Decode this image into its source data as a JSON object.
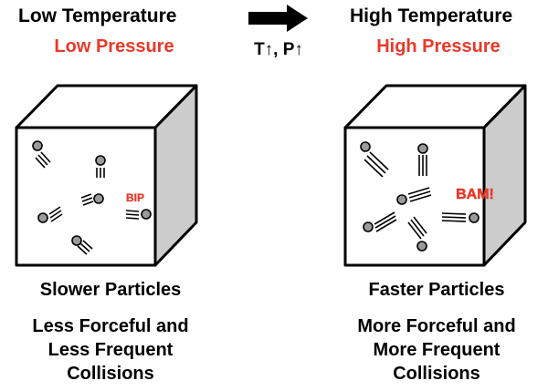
{
  "left": {
    "title": "Low Temperature",
    "subtitle": "Low Pressure",
    "caption": "Slower Particles",
    "description_line1": "Less Forceful and",
    "description_line2": "Less Frequent",
    "description_line3": "Collisions",
    "impact_word": "BIP"
  },
  "right": {
    "title": "High Temperature",
    "subtitle": "High Pressure",
    "caption": "Faster Particles",
    "description_line1": "More Forceful and",
    "description_line2": "More Frequent",
    "description_line3": "Collisions",
    "impact_word": "BAM!"
  },
  "transition": {
    "label": "T↑, P↑",
    "icon": "right-arrow-icon"
  },
  "colors": {
    "accent": "#e8392a",
    "particle_fill": "#9a9a9a",
    "box_side": "#cccccc",
    "box_front": "#ffffff"
  }
}
